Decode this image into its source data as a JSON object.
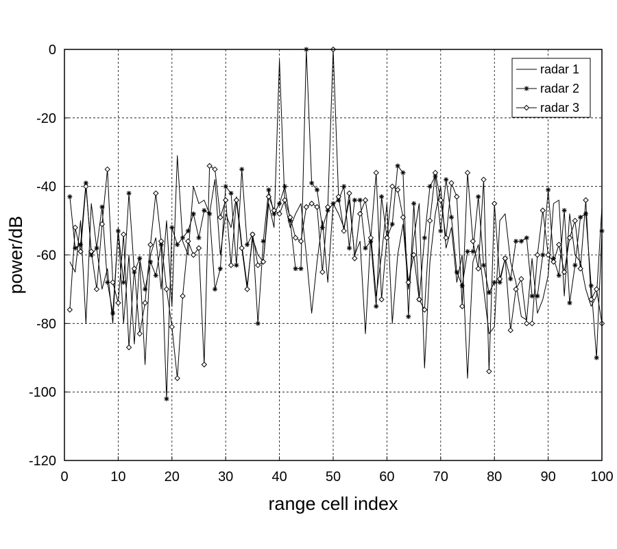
{
  "chart_data": {
    "type": "line",
    "title": "",
    "xlabel": "range cell index",
    "ylabel": "power/dB",
    "xlim": [
      0,
      100
    ],
    "ylim": [
      -120,
      0
    ],
    "xticks": [
      0,
      10,
      20,
      30,
      40,
      50,
      60,
      70,
      80,
      90,
      100
    ],
    "yticks": [
      0,
      -20,
      -40,
      -60,
      -80,
      -100,
      -120
    ],
    "grid": true,
    "legend_position": "top-right",
    "series": [
      {
        "name": "radar 1",
        "marker": "none",
        "color": "#000000",
        "x": [
          1,
          2,
          3,
          4,
          5,
          6,
          7,
          8,
          9,
          10,
          11,
          12,
          13,
          14,
          15,
          16,
          17,
          18,
          19,
          20,
          21,
          22,
          23,
          24,
          25,
          26,
          27,
          28,
          29,
          30,
          31,
          32,
          33,
          34,
          35,
          36,
          37,
          38,
          39,
          40,
          41,
          42,
          43,
          44,
          45,
          46,
          47,
          48,
          49,
          50,
          51,
          52,
          53,
          54,
          55,
          56,
          57,
          58,
          59,
          60,
          61,
          62,
          63,
          64,
          65,
          66,
          67,
          68,
          69,
          70,
          71,
          72,
          73,
          74,
          75,
          76,
          77,
          78,
          79,
          80,
          81,
          82,
          83,
          84,
          85,
          86,
          87,
          88,
          89,
          90,
          91,
          92,
          93,
          94,
          95,
          96,
          97,
          98,
          99,
          100
        ],
        "values": [
          -62,
          -65,
          -50,
          -80,
          -45,
          -58,
          -70,
          -64,
          -80,
          -52,
          -80,
          -60,
          -86,
          -62,
          -92,
          -60,
          -55,
          -70,
          -50,
          -75,
          -31,
          -56,
          -60,
          -40,
          -45,
          -44,
          -48,
          -38,
          -60,
          -48,
          -52,
          -43,
          -57,
          -69,
          -55,
          -60,
          -62,
          -45,
          -52,
          -3,
          -45,
          -52,
          -48,
          -45,
          -60,
          -77,
          -62,
          -50,
          -68,
          -45,
          -48,
          -52,
          -44,
          -60,
          -56,
          -83,
          -54,
          -72,
          -60,
          -45,
          -80,
          -60,
          -51,
          -70,
          -55,
          -45,
          -93,
          -62,
          -48,
          -40,
          -58,
          -52,
          -68,
          -60,
          -96,
          -62,
          -57,
          -70,
          -83,
          -81,
          -50,
          -48,
          -62,
          -68,
          -78,
          -79,
          -61,
          -77,
          -73,
          -66,
          -45,
          -44,
          -72,
          -48,
          -60,
          -62,
          -70,
          -75,
          -72,
          -46
        ]
      },
      {
        "name": "radar 2",
        "marker": "star",
        "color": "#000000",
        "x": [
          1,
          2,
          3,
          4,
          5,
          6,
          7,
          8,
          9,
          10,
          11,
          12,
          13,
          14,
          15,
          16,
          17,
          18,
          19,
          20,
          21,
          22,
          23,
          24,
          25,
          26,
          27,
          28,
          29,
          30,
          31,
          32,
          33,
          34,
          35,
          36,
          37,
          38,
          39,
          40,
          41,
          42,
          43,
          44,
          45,
          46,
          47,
          48,
          49,
          50,
          51,
          52,
          53,
          54,
          55,
          56,
          57,
          58,
          59,
          60,
          61,
          62,
          63,
          64,
          65,
          66,
          67,
          68,
          69,
          70,
          71,
          72,
          73,
          74,
          75,
          76,
          77,
          78,
          79,
          80,
          81,
          82,
          83,
          84,
          85,
          86,
          87,
          88,
          89,
          90,
          91,
          92,
          93,
          94,
          95,
          96,
          97,
          98,
          99,
          100
        ],
        "values": [
          -43,
          -58,
          -57,
          -39,
          -60,
          -58,
          -46,
          -68,
          -77,
          -53,
          -68,
          -42,
          -65,
          -61,
          -70,
          -62,
          -66,
          -57,
          -102,
          -52,
          -57,
          -55,
          -53,
          -48,
          -55,
          -47,
          -48,
          -70,
          -64,
          -40,
          -42,
          -63,
          -35,
          -57,
          -54,
          -80,
          -56,
          -41,
          -48,
          -45,
          -40,
          -50,
          -64,
          -64,
          0,
          -39,
          -41,
          -52,
          -47,
          -45,
          -44,
          -40,
          -58,
          -44,
          -44,
          -58,
          -56,
          -75,
          -43,
          -55,
          -51,
          -34,
          -36,
          -78,
          -45,
          -73,
          -55,
          -40,
          -37,
          -53,
          -38,
          -49,
          -65,
          -69,
          -59,
          -59,
          -43,
          -63,
          -71,
          -68,
          -68,
          -61,
          -67,
          -56,
          -56,
          -55,
          -72,
          -72,
          -60,
          -41,
          -61,
          -66,
          -47,
          -74,
          -63,
          -49,
          -48,
          -69,
          -90,
          -53
        ]
      },
      {
        "name": "radar 3",
        "marker": "diamond",
        "color": "#000000",
        "x": [
          1,
          2,
          3,
          4,
          5,
          6,
          7,
          8,
          9,
          10,
          11,
          12,
          13,
          14,
          15,
          16,
          17,
          18,
          19,
          20,
          21,
          22,
          23,
          24,
          25,
          26,
          27,
          28,
          29,
          30,
          31,
          32,
          33,
          34,
          35,
          36,
          37,
          38,
          39,
          40,
          41,
          42,
          43,
          44,
          45,
          46,
          47,
          48,
          49,
          50,
          51,
          52,
          53,
          54,
          55,
          56,
          57,
          58,
          59,
          60,
          61,
          62,
          63,
          64,
          65,
          66,
          67,
          68,
          69,
          70,
          71,
          72,
          73,
          74,
          75,
          76,
          77,
          78,
          79,
          80,
          81,
          82,
          83,
          84,
          85,
          86,
          87,
          88,
          89,
          90,
          91,
          92,
          93,
          94,
          95,
          96,
          97,
          98,
          99,
          100
        ],
        "values": [
          -76,
          -52,
          -59,
          -40,
          -59,
          -70,
          -51,
          -35,
          -68,
          -74,
          -54,
          -87,
          -64,
          -83,
          -74,
          -57,
          -42,
          -56,
          -70,
          -81,
          -96,
          -72,
          -56,
          -60,
          -58,
          -92,
          -34,
          -35,
          -49,
          -44,
          -63,
          -44,
          -58,
          -70,
          -54,
          -63,
          -62,
          -43,
          -47,
          -48,
          -44,
          -49,
          -55,
          -56,
          -46,
          -45,
          -46,
          -65,
          -46,
          0,
          -43,
          -53,
          -42,
          -61,
          -48,
          -44,
          -55,
          -36,
          -73,
          -55,
          -40,
          -41,
          -49,
          -68,
          -60,
          -73,
          -76,
          -50,
          -36,
          -44,
          -55,
          -39,
          -43,
          -75,
          -36,
          -56,
          -64,
          -38,
          -94,
          -45,
          -67,
          -61,
          -82,
          -70,
          -67,
          -80,
          -80,
          -60,
          -47,
          -60,
          -62,
          -57,
          -65,
          -55,
          -50,
          -64,
          -44,
          -73,
          -70,
          -80
        ]
      }
    ]
  }
}
